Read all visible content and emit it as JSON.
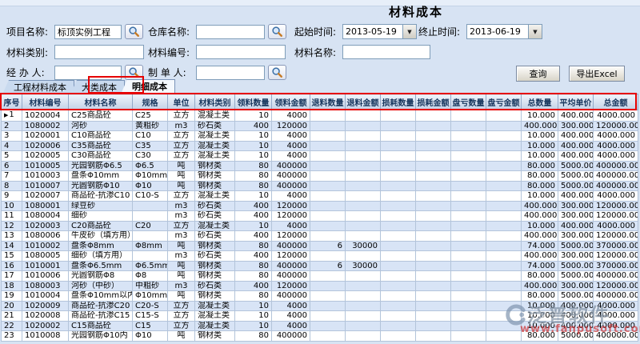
{
  "title": "材料成本",
  "form": {
    "fields": [
      {
        "label": "项目名称:",
        "value": "标顶实例工程"
      },
      {
        "label": "仓库名称:",
        "value": ""
      },
      {
        "label": "起始时间:",
        "value": "2013-05-19"
      },
      {
        "label": "终止时间:",
        "value": "2013-06-19"
      },
      {
        "label": "材料类别:",
        "value": ""
      },
      {
        "label": "材料编号:",
        "value": ""
      },
      {
        "label": "材料名称:",
        "value": ""
      },
      {
        "label": "经 办 人:",
        "value": ""
      },
      {
        "label": "制 单 人:",
        "value": ""
      }
    ],
    "buttons": {
      "query": "查询",
      "export": "导出Excel"
    }
  },
  "tabs": [
    {
      "label": "工程材料成本",
      "active": false
    },
    {
      "label": "大类成本",
      "active": false
    },
    {
      "label": "明细成本",
      "active": true
    }
  ],
  "table": {
    "columns": [
      "序号",
      "材料编号",
      "材料名称",
      "规格",
      "单位",
      "材料类别",
      "领料数量",
      "领料金额",
      "退料数量",
      "退料金额",
      "损耗数量",
      "损耗金额",
      "盘亏数量",
      "盘亏金额",
      "总数量",
      "平均单价",
      "总金额"
    ],
    "rows": [
      [
        "1",
        "1020004",
        "C25商品砼",
        "C25",
        "立方",
        "混凝土类",
        "10",
        "4000",
        "",
        "",
        "",
        "",
        "",
        "",
        "10.000",
        "400.000",
        "4000.000"
      ],
      [
        "2",
        "1080002",
        "河砂",
        "黄粗砂",
        "m3",
        "砂石类",
        "400",
        "120000",
        "",
        "",
        "",
        "",
        "",
        "",
        "400.000",
        "300.000",
        "120000.000"
      ],
      [
        "3",
        "1020001",
        "C10商品砼",
        "C10",
        "立方",
        "混凝土类",
        "10",
        "4000",
        "",
        "",
        "",
        "",
        "",
        "",
        "10.000",
        "400.000",
        "4000.000"
      ],
      [
        "4",
        "1020006",
        "C35商品砼",
        "C35",
        "立方",
        "混凝土类",
        "10",
        "4000",
        "",
        "",
        "",
        "",
        "",
        "",
        "10.000",
        "400.000",
        "4000.000"
      ],
      [
        "5",
        "1020005",
        "C30商品砼",
        "C30",
        "立方",
        "混凝土类",
        "10",
        "4000",
        "",
        "",
        "",
        "",
        "",
        "",
        "10.000",
        "400.000",
        "4000.000"
      ],
      [
        "6",
        "1010005",
        "光园钢筋Φ6.5",
        "Φ6.5",
        "吨",
        "钢材类",
        "80",
        "400000",
        "",
        "",
        "",
        "",
        "",
        "",
        "80.000",
        "5000.000",
        "400000.000"
      ],
      [
        "7",
        "1010003",
        "盘条Φ10mm",
        "Φ10mm",
        "吨",
        "钢材类",
        "80",
        "400000",
        "",
        "",
        "",
        "",
        "",
        "",
        "80.000",
        "5000.000",
        "400000.000"
      ],
      [
        "8",
        "1010007",
        "光圆钢筋Φ10",
        "Φ10",
        "吨",
        "钢材类",
        "80",
        "400000",
        "",
        "",
        "",
        "",
        "",
        "",
        "80.000",
        "5000.000",
        "400000.000"
      ],
      [
        "9",
        "1020007",
        "商品砼-抗渗C10",
        "C10-S",
        "立方",
        "混凝土类",
        "10",
        "4000",
        "",
        "",
        "",
        "",
        "",
        "",
        "10.000",
        "400.000",
        "4000.000"
      ],
      [
        "10",
        "1080001",
        "绿豆砂",
        "",
        "m3",
        "砂石类",
        "400",
        "120000",
        "",
        "",
        "",
        "",
        "",
        "",
        "400.000",
        "300.000",
        "120000.000"
      ],
      [
        "11",
        "1080004",
        "细砂",
        "",
        "m3",
        "砂石类",
        "400",
        "120000",
        "",
        "",
        "",
        "",
        "",
        "",
        "400.000",
        "300.000",
        "120000.000"
      ],
      [
        "12",
        "1020003",
        "C20商品砼",
        "C20",
        "立方",
        "混凝土类",
        "10",
        "4000",
        "",
        "",
        "",
        "",
        "",
        "",
        "10.000",
        "400.000",
        "4000.000"
      ],
      [
        "13",
        "1080006",
        "牛皮砂（填方用）",
        "",
        "m3",
        "砂石类",
        "400",
        "120000",
        "",
        "",
        "",
        "",
        "",
        "",
        "400.000",
        "300.000",
        "120000.000"
      ],
      [
        "14",
        "1010002",
        "盘条Φ8mm",
        "Φ8mm",
        "吨",
        "钢材类",
        "80",
        "400000",
        "6",
        "30000",
        "",
        "",
        "",
        "",
        "74.000",
        "5000.000",
        "370000.000"
      ],
      [
        "15",
        "1080005",
        "细砂（填方用）",
        "",
        "m3",
        "砂石类",
        "400",
        "120000",
        "",
        "",
        "",
        "",
        "",
        "",
        "400.000",
        "300.000",
        "120000.000"
      ],
      [
        "16",
        "1010001",
        "盘条Φ6.5mm",
        "Φ6.5mm",
        "吨",
        "钢材类",
        "80",
        "400000",
        "6",
        "30000",
        "",
        "",
        "",
        "",
        "74.000",
        "5000.000",
        "370000.000"
      ],
      [
        "17",
        "1010006",
        "光圆钢筋Φ8",
        "Φ8",
        "吨",
        "钢材类",
        "80",
        "400000",
        "",
        "",
        "",
        "",
        "",
        "",
        "80.000",
        "5000.000",
        "400000.000"
      ],
      [
        "18",
        "1080003",
        "河砂（中砂）",
        "中粗砂",
        "m3",
        "砂石类",
        "400",
        "120000",
        "",
        "",
        "",
        "",
        "",
        "",
        "400.000",
        "300.000",
        "120000.000"
      ],
      [
        "19",
        "1010004",
        "盘条Φ10mm以内",
        "Φ10mm",
        "吨",
        "钢材类",
        "80",
        "400000",
        "",
        "",
        "",
        "",
        "",
        "",
        "80.000",
        "5000.000",
        "400000.000"
      ],
      [
        "20",
        "1020009",
        "商品砼-抗渗C20",
        "C20-S",
        "立方",
        "混凝土类",
        "10",
        "4000",
        "",
        "",
        "",
        "",
        "",
        "",
        "10.000",
        "400.000",
        "4000.000"
      ],
      [
        "21",
        "1020008",
        "商品砼-抗渗C15",
        "C15-S",
        "立方",
        "混凝土类",
        "10",
        "4000",
        "",
        "",
        "",
        "",
        "",
        "",
        "10.000",
        "400.000",
        "4000.000"
      ],
      [
        "22",
        "1020002",
        "C15商品砼",
        "C15",
        "立方",
        "混凝土类",
        "10",
        "4000",
        "",
        "",
        "",
        "",
        "",
        "",
        "10.000",
        "400.000",
        "4000.000"
      ],
      [
        "23",
        "1010008",
        "光园钢筋Φ10内",
        "Φ10",
        "吨",
        "钢材类",
        "80",
        "400000",
        "",
        "",
        "",
        "",
        "",
        "",
        "80.000",
        "5000.000",
        "400000.000"
      ]
    ]
  },
  "watermark": {
    "brand": "泛普软件",
    "url": "www.fanpusoft.com"
  },
  "colors": {
    "accent_red": "#e60000",
    "row_alt": "#d8e4f6",
    "header_text": "#17365d"
  }
}
